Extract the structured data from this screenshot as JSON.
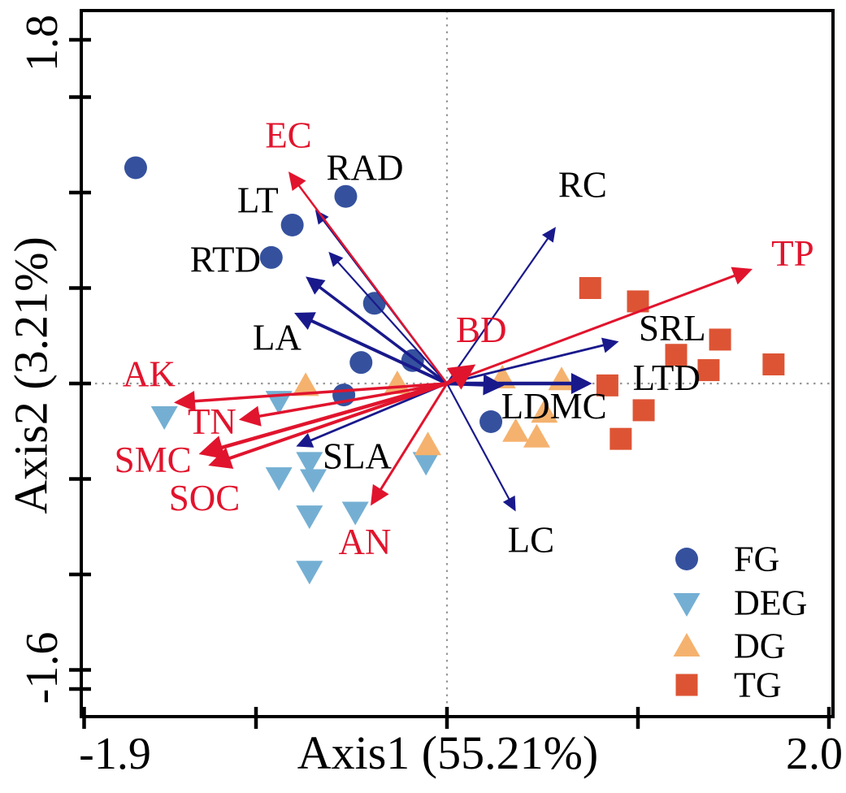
{
  "colors": {
    "background": "#ffffff",
    "frame": "#000000",
    "zero_line": "#999999",
    "env_arrow": "#e1142d",
    "trait_arrow": "#19198c",
    "env_label": "#e1142d",
    "trait_label": "#000000",
    "fg": "#35519e",
    "deg": "#74afd3",
    "dg": "#f5b26e",
    "tg": "#dd5434"
  },
  "chart_data": {
    "type": "scatter",
    "title": "",
    "xlabel": "Axis1 (55.21%)",
    "ylabel": "Axis2 (3.21%)",
    "xlim": [
      -1.9,
      2.0
    ],
    "ylim": [
      -1.6,
      1.8
    ],
    "grid": "dotted zero lines at x=0 and y=0",
    "legend_position": "inside bottom-right",
    "x_ticks": [
      -1.9,
      -1,
      0,
      1,
      2
    ],
    "x_tick_labels": [
      "-1.9",
      "",
      "",
      "",
      "2.0"
    ],
    "y_ticks": [
      1.8,
      1.5,
      1,
      0.5,
      0,
      -0.5,
      -1,
      -1.5,
      -1.6
    ],
    "y_tick_labels": [
      "1.8",
      "",
      "",
      "",
      "",
      "",
      "",
      "",
      "-1.6"
    ],
    "series": [
      {
        "name": "FG",
        "marker": "circle",
        "color": "#35519e",
        "points": [
          [
            -1.63,
            1.13
          ],
          [
            -0.53,
            0.98
          ],
          [
            -0.81,
            0.83
          ],
          [
            -0.92,
            0.66
          ],
          [
            -0.38,
            0.42
          ],
          [
            -0.45,
            0.11
          ],
          [
            -0.18,
            0.12
          ],
          [
            -0.54,
            -0.06
          ],
          [
            0.23,
            -0.2
          ]
        ]
      },
      {
        "name": "DEG",
        "marker": "triangle-down",
        "color": "#74afd3",
        "points": [
          [
            -1.48,
            -0.17
          ],
          [
            -0.88,
            -0.09
          ],
          [
            -0.88,
            -0.49
          ],
          [
            -0.72,
            -0.41
          ],
          [
            -0.7,
            -0.5
          ],
          [
            -0.72,
            -0.69
          ],
          [
            -0.48,
            -0.67
          ],
          [
            -0.11,
            -0.41
          ],
          [
            -0.72,
            -0.98
          ]
        ]
      },
      {
        "name": "DG",
        "marker": "triangle-up",
        "color": "#f5b26e",
        "points": [
          [
            -0.74,
            -0.01
          ],
          [
            -0.26,
            0.0
          ],
          [
            -0.1,
            -0.32
          ],
          [
            0.29,
            0.03
          ],
          [
            0.6,
            0.02
          ],
          [
            0.51,
            -0.15
          ],
          [
            0.36,
            -0.25
          ],
          [
            0.47,
            -0.28
          ]
        ]
      },
      {
        "name": "TG",
        "marker": "square",
        "color": "#dd5434",
        "points": [
          [
            0.75,
            0.5
          ],
          [
            1.0,
            0.43
          ],
          [
            1.43,
            0.23
          ],
          [
            1.2,
            0.15
          ],
          [
            1.37,
            0.07
          ],
          [
            1.71,
            0.1
          ],
          [
            0.84,
            -0.01
          ],
          [
            1.03,
            -0.14
          ],
          [
            0.91,
            -0.29
          ]
        ]
      }
    ],
    "env_arrows": {
      "color": "#e1142d",
      "items": [
        {
          "label": "EC",
          "tip": [
            -0.83,
            1.11
          ],
          "label_pos": [
            -0.83,
            1.3
          ],
          "lw": 2.5
        },
        {
          "label": "TP",
          "tip": [
            1.6,
            0.6
          ],
          "label_pos": [
            1.81,
            0.68
          ],
          "lw": 3
        },
        {
          "label": "BD",
          "tip": [
            0.15,
            0.1
          ],
          "label_pos": [
            0.18,
            0.28
          ],
          "lw": 5
        },
        {
          "label": "AK",
          "tip": [
            -1.43,
            -0.1
          ],
          "label_pos": [
            -1.56,
            0.05
          ],
          "lw": 3.5
        },
        {
          "label": "TN",
          "tip": [
            -1.09,
            -0.19
          ],
          "label_pos": [
            -1.23,
            -0.2
          ],
          "lw": 3.5
        },
        {
          "label": "SMC",
          "tip": [
            -1.3,
            -0.37
          ],
          "label_pos": [
            -1.54,
            -0.4
          ],
          "lw": 4.5
        },
        {
          "label": "SOC",
          "tip": [
            -1.25,
            -0.43
          ],
          "label_pos": [
            -1.27,
            -0.6
          ],
          "lw": 4
        },
        {
          "label": "AN",
          "tip": [
            -0.4,
            -0.64
          ],
          "label_pos": [
            -0.43,
            -0.83
          ],
          "lw": 3
        }
      ]
    },
    "trait_arrows": {
      "color": "#19198c",
      "items": [
        {
          "label": "RAD",
          "tip": [
            -0.69,
            0.91
          ],
          "label_pos": [
            -0.43,
            1.13
          ],
          "lw": 2
        },
        {
          "label": "LT",
          "tip": [
            -0.62,
            0.69
          ],
          "label_pos": [
            -0.99,
            0.96
          ],
          "lw": 2.2
        },
        {
          "label": "RTD",
          "tip": [
            -0.74,
            0.56
          ],
          "label_pos": [
            -1.16,
            0.65
          ],
          "lw": 3.5
        },
        {
          "label": "LA",
          "tip": [
            -0.8,
            0.37
          ],
          "label_pos": [
            -0.89,
            0.24
          ],
          "lw": 4
        },
        {
          "label": "RC",
          "tip": [
            0.57,
            0.82
          ],
          "label_pos": [
            0.71,
            1.04
          ],
          "lw": 2.2
        },
        {
          "label": "SRL",
          "tip": [
            0.9,
            0.22
          ],
          "label_pos": [
            1.18,
            0.29
          ],
          "lw": 2.8
        },
        {
          "label": "LTD",
          "tip": [
            0.76,
            0.0
          ],
          "label_pos": [
            1.15,
            0.03
          ],
          "lw": 4.5
        },
        {
          "label": "LDMC",
          "tip": [
            0.3,
            -0.01
          ],
          "label_pos": [
            0.56,
            -0.12
          ],
          "lw": 4.5
        },
        {
          "label": "SLA",
          "tip": [
            -0.79,
            -0.33
          ],
          "label_pos": [
            -0.47,
            -0.38
          ],
          "lw": 2.8
        },
        {
          "label": "LC",
          "tip": [
            0.36,
            -0.67
          ],
          "label_pos": [
            0.44,
            -0.82
          ],
          "lw": 2.2
        }
      ]
    },
    "legend": {
      "items": [
        {
          "label": "FG",
          "marker": "circle",
          "color": "#35519e"
        },
        {
          "label": "DEG",
          "marker": "triangle-down",
          "color": "#74afd3"
        },
        {
          "label": "DG",
          "marker": "triangle-up",
          "color": "#f5b26e"
        },
        {
          "label": "TG",
          "marker": "square",
          "color": "#dd5434"
        }
      ]
    }
  }
}
